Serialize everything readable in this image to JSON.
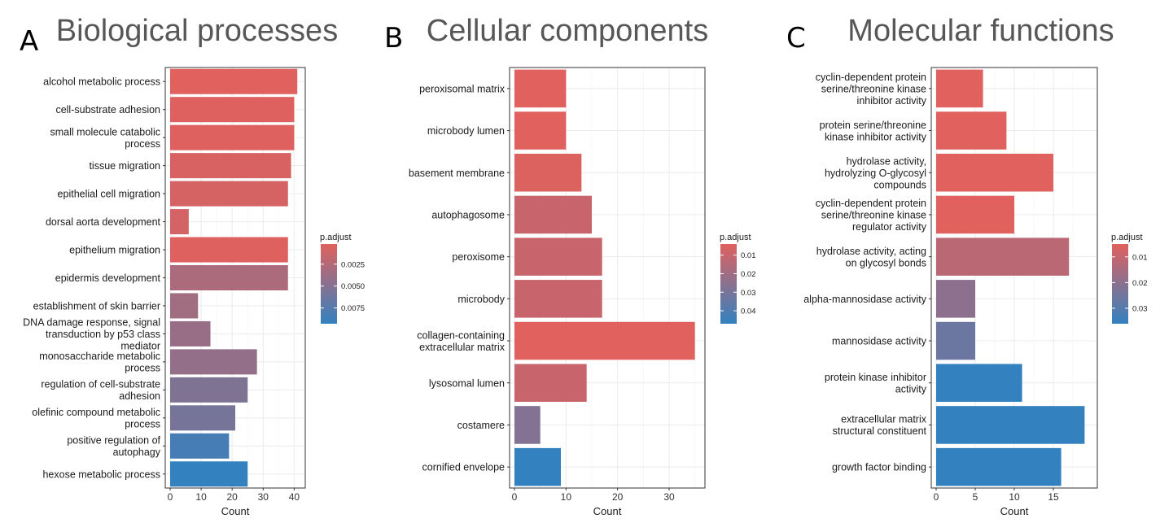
{
  "chart_data": [
    {
      "type": "bar",
      "orientation": "horizontal",
      "panel_label": "A",
      "title": "Biological processes",
      "xlabel": "Count",
      "ylabel": "",
      "xlim": [
        0,
        42
      ],
      "xticks": [
        0,
        10,
        20,
        30,
        40
      ],
      "grid": true,
      "categories": [
        "alcohol metabolic process",
        "cell-substrate adhesion",
        "small molecule catabolic process",
        "tissue migration",
        "epithelial cell migration",
        "dorsal aorta development",
        "epithelium migration",
        "epidermis development",
        "establishment of skin barrier",
        "DNA damage response, signal transduction by p53 class mediator",
        "monosaccharide metabolic process",
        "regulation of cell-substrate adhesion",
        "olefinic compound metabolic process",
        "positive regulation of autophagy",
        "hexose metabolic process"
      ],
      "category_lines": [
        [
          "alcohol metabolic process"
        ],
        [
          "cell-substrate adhesion"
        ],
        [
          "small molecule catabolic",
          "process"
        ],
        [
          "tissue migration"
        ],
        [
          "epithelial cell migration"
        ],
        [
          "dorsal aorta development"
        ],
        [
          "epithelium migration"
        ],
        [
          "epidermis development"
        ],
        [
          "establishment of skin barrier"
        ],
        [
          "DNA damage response, signal",
          "transduction by p53 class",
          "mediator"
        ],
        [
          "monosaccharide metabolic",
          "process"
        ],
        [
          "regulation of cell-substrate",
          "adhesion"
        ],
        [
          "olefinic compound metabolic",
          "process"
        ],
        [
          "positive regulation of",
          "autophagy"
        ],
        [
          "hexose metabolic process"
        ]
      ],
      "values": [
        41,
        40,
        40,
        39,
        38,
        6,
        38,
        38,
        9,
        13,
        28,
        25,
        21,
        19,
        25
      ],
      "p_adjust": [
        0.0002,
        0.0003,
        0.0003,
        0.0006,
        0.0008,
        0.0009,
        0.0003,
        0.003,
        0.0035,
        0.004,
        0.0042,
        0.0053,
        0.0057,
        0.0083,
        0.0093
      ],
      "legend": {
        "title": "p.adjust",
        "ticks": [
          0.0025,
          0.005,
          0.0075
        ],
        "tick_labels": [
          "0.0025",
          "0.0050",
          "0.0075"
        ],
        "range": [
          0.0002,
          0.0093
        ],
        "placement": "right"
      }
    },
    {
      "type": "bar",
      "orientation": "horizontal",
      "panel_label": "B",
      "title": "Cellular components",
      "xlabel": "Count",
      "ylabel": "",
      "xlim": [
        0,
        36
      ],
      "xticks": [
        0,
        10,
        20,
        30
      ],
      "grid": true,
      "categories": [
        "peroxisomal matrix",
        "microbody lumen",
        "basement membrane",
        "autophagosome",
        "peroxisome",
        "microbody",
        "collagen-containing extracellular matrix",
        "lysosomal lumen",
        "costamere",
        "cornified envelope"
      ],
      "category_lines": [
        [
          "peroxisomal matrix"
        ],
        [
          "microbody lumen"
        ],
        [
          "basement membrane"
        ],
        [
          "autophagosome"
        ],
        [
          "peroxisome"
        ],
        [
          "microbody"
        ],
        [
          "collagen-containing",
          "extracellular matrix"
        ],
        [
          "lysosomal lumen"
        ],
        [
          "costamere"
        ],
        [
          "cornified envelope"
        ]
      ],
      "values": [
        10,
        10,
        13,
        15,
        17,
        17,
        35,
        14,
        5,
        9
      ],
      "p_adjust": [
        0.004,
        0.004,
        0.005,
        0.01,
        0.01,
        0.01,
        0.004,
        0.01,
        0.027,
        0.047
      ],
      "legend": {
        "title": "p.adjust",
        "ticks": [
          0.01,
          0.02,
          0.03,
          0.04
        ],
        "tick_labels": [
          "0.01",
          "0.02",
          "0.03",
          "0.04"
        ],
        "range": [
          0.004,
          0.047
        ],
        "placement": "right"
      }
    },
    {
      "type": "bar",
      "orientation": "horizontal",
      "panel_label": "C",
      "title": "Molecular functions",
      "xlabel": "Count",
      "ylabel": "",
      "xlim": [
        0,
        20
      ],
      "xticks": [
        0,
        5,
        10,
        15
      ],
      "grid": true,
      "categories": [
        "cyclin-dependent protein serine/threonine kinase inhibitor activity",
        "protein serine/threonine kinase inhibitor activity",
        "hydrolase activity, hydrolyzing O-glycosyl compounds",
        "cyclin-dependent protein serine/threonine kinase regulator activity",
        "hydrolase activity, acting on glycosyl bonds",
        "alpha-mannosidase activity",
        "mannosidase activity",
        "protein kinase inhibitor activity",
        "extracellular matrix structural constituent",
        "growth factor binding"
      ],
      "category_lines": [
        [
          "cyclin-dependent protein",
          "serine/threonine kinase",
          "inhibitor activity"
        ],
        [
          "protein serine/threonine",
          "kinase inhibitor activity"
        ],
        [
          "hydrolase activity,",
          "hydrolyzing O-glycosyl",
          "compounds"
        ],
        [
          "cyclin-dependent protein",
          "serine/threonine kinase",
          "regulator activity"
        ],
        [
          "hydrolase activity, acting",
          "on glycosyl bonds"
        ],
        [
          "alpha-mannosidase activity"
        ],
        [
          "mannosidase activity"
        ],
        [
          "protein kinase inhibitor",
          "activity"
        ],
        [
          "extracellular matrix",
          "structural constituent"
        ],
        [
          "growth factor binding"
        ]
      ],
      "values": [
        6,
        9,
        15,
        10,
        17,
        5,
        5,
        11,
        19,
        16
      ],
      "p_adjust": [
        0.005,
        0.005,
        0.005,
        0.005,
        0.012,
        0.02,
        0.026,
        0.036,
        0.036,
        0.036
      ],
      "legend": {
        "title": "p.adjust",
        "ticks": [
          0.01,
          0.02,
          0.03
        ],
        "tick_labels": [
          "0.01",
          "0.02",
          "0.03"
        ],
        "range": [
          0.005,
          0.036
        ],
        "placement": "right"
      }
    }
  ],
  "colors": {
    "low_p": "#E0615E",
    "high_p": "#3381BF",
    "panel_border": "#333333",
    "grid": "#EBEBEB"
  }
}
